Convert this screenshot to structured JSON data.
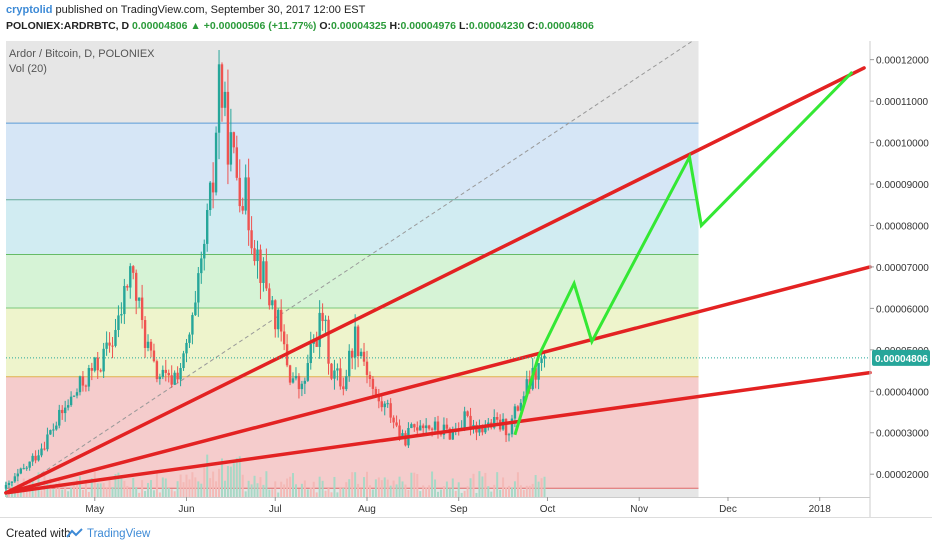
{
  "header": {
    "author": "cryptolid",
    "published": "published on TradingView.com, September 30, 2017 12:00 EST",
    "symbol": "POLONIEX:ARDRBTC, D",
    "last": "0.00004806",
    "change": "+0.00000506 (+11.77%)",
    "open_label": "O:",
    "open": "0.00004325",
    "high_label": "H:",
    "high": "0.00004976",
    "low_label": "L:",
    "low": "0.00004230",
    "close_label": "C:",
    "close": "0.00004806"
  },
  "chart_title": "Ardor / Bitcoin, D, POLONIEX",
  "volume_label": "Vol (20)",
  "footer": {
    "created_with": "Created with",
    "brand": "TradingView"
  },
  "chart_data": {
    "type": "candlestick",
    "ylim": [
      1.45e-05,
      0.0001245
    ],
    "y_ticks": [
      "0.00002000",
      "0.00003000",
      "0.00004000",
      "0.00005000",
      "0.00006000",
      "0.00007000",
      "0.00008000",
      "0.00009000",
      "0.00010000",
      "0.00011000",
      "0.00012000"
    ],
    "y_tick_values": [
      2e-05,
      3e-05,
      4e-05,
      5e-05,
      6e-05,
      7e-05,
      8e-05,
      9e-05,
      0.0001,
      0.00011,
      0.00012
    ],
    "last_price_label": "0.00004806",
    "last_price": 4.806e-05,
    "x_ticks": [
      "May",
      "Jun",
      "Jul",
      "Aug",
      "Sep",
      "Oct",
      "Nov",
      "Dec",
      "2018"
    ],
    "x_tick_days": [
      30,
      61,
      91,
      122,
      153,
      183,
      214,
      244,
      275
    ],
    "x_range_days": [
      0,
      292
    ],
    "last_data_day": 182,
    "fib_levels": [
      1.66e-05,
      4.35e-05,
      6.01e-05,
      7.3e-05,
      8.62e-05,
      0.0001047
    ],
    "fib_fill_colors": [
      "#f5cccc",
      "#eef4cc",
      "#d6f3d6",
      "#d1ecf2",
      "#d6e6f6"
    ],
    "fib_line_colors": [
      "#e06666",
      "#e0b050",
      "#7cc97c",
      "#66bb66",
      "#66aa99",
      "#5b9bd5"
    ],
    "trend_lines": [
      {
        "from": [
          0,
          1.55e-05
        ],
        "to": [
          290,
          0.000118
        ]
      },
      {
        "from": [
          0,
          1.55e-05
        ],
        "to": [
          292,
          7e-05
        ]
      },
      {
        "from": [
          0,
          1.55e-05
        ],
        "to": [
          292,
          4.45e-05
        ]
      }
    ],
    "trend_line_color": "#e32222",
    "projection": [
      [
        172,
        2.95e-05
      ],
      [
        180,
        4.85e-05
      ],
      [
        192,
        6.6e-05
      ],
      [
        198,
        5.2e-05
      ],
      [
        231,
        9.65e-05
      ],
      [
        235,
        8e-05
      ],
      [
        286,
        0.000117
      ]
    ],
    "projection_color": "#34e834",
    "diagonal": {
      "from": [
        0,
        1.45e-05
      ],
      "to": [
        232,
        0.0001245
      ]
    },
    "price_path": [
      [
        0,
        1.65e-05
      ],
      [
        8,
        2.25e-05
      ],
      [
        15,
        3e-05
      ],
      [
        22,
        3.8e-05
      ],
      [
        28,
        4.4e-05
      ],
      [
        33,
        4.8e-05
      ],
      [
        38,
        5.6e-05
      ],
      [
        42,
        7e-05
      ],
      [
        46,
        5.6e-05
      ],
      [
        50,
        4.5e-05
      ],
      [
        55,
        4.2e-05
      ],
      [
        60,
        4.7e-05
      ],
      [
        64,
        5.9e-05
      ],
      [
        68,
        8e-05
      ],
      [
        70,
        9e-05
      ],
      [
        72,
        0.000117
      ],
      [
        74,
        0.000105
      ],
      [
        77,
        9.5e-05
      ],
      [
        80,
        8.9e-05
      ],
      [
        84,
        7.6e-05
      ],
      [
        88,
        6.5e-05
      ],
      [
        92,
        5.6e-05
      ],
      [
        96,
        4.4e-05
      ],
      [
        100,
        4e-05
      ],
      [
        104,
        5.2e-05
      ],
      [
        107,
        5.8e-05
      ],
      [
        110,
        4.5e-05
      ],
      [
        114,
        4.2e-05
      ],
      [
        118,
        5.4e-05
      ],
      [
        121,
        4.8e-05
      ],
      [
        125,
        3.8e-05
      ],
      [
        130,
        3.5e-05
      ],
      [
        134,
        2.8e-05
      ],
      [
        140,
        3.3e-05
      ],
      [
        145,
        3.1e-05
      ],
      [
        150,
        3e-05
      ],
      [
        155,
        3.3e-05
      ],
      [
        160,
        3.15e-05
      ],
      [
        166,
        3.2e-05
      ],
      [
        170,
        3.1e-05
      ],
      [
        174,
        3.8e-05
      ],
      [
        178,
        4.3e-05
      ],
      [
        182,
        4.8e-05
      ]
    ],
    "up_color": "#26a69a",
    "down_color": "#ef5350"
  }
}
